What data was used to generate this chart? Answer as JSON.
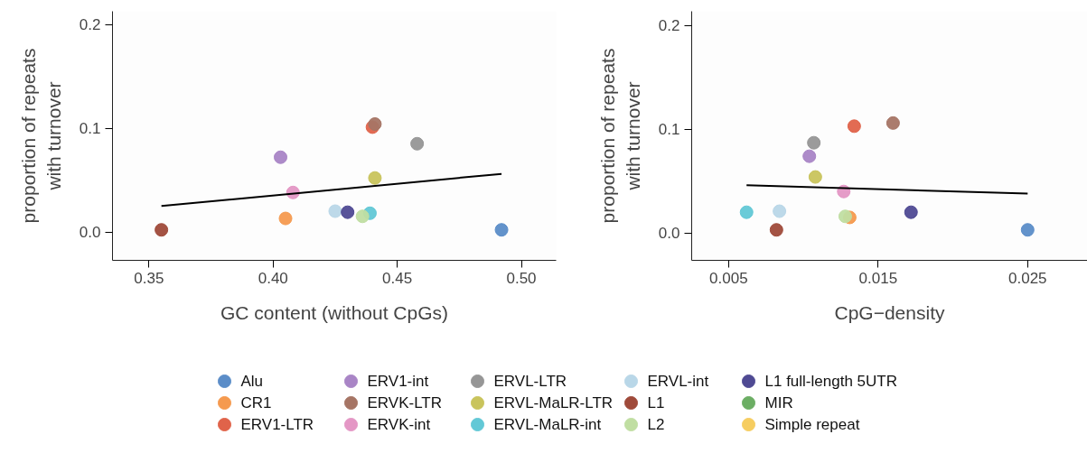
{
  "chart_data": [
    {
      "type": "scatter",
      "xlabel": "GC content (without CpGs)",
      "ylabel": "proportion of repeats\nwith turnover",
      "xlim": [
        0.3353,
        0.514
      ],
      "ylim": [
        -0.0274,
        0.2127
      ],
      "xticks": [
        {
          "value": 0.35,
          "label": "0.35"
        },
        {
          "value": 0.4,
          "label": "0.40"
        },
        {
          "value": 0.45,
          "label": "0.45"
        },
        {
          "value": 0.5,
          "label": "0.50"
        }
      ],
      "yticks": [
        {
          "value": 0,
          "label": "0.0"
        },
        {
          "value": 0.1,
          "label": "0.1"
        },
        {
          "value": 0.2,
          "label": "0.2"
        }
      ],
      "grid": false,
      "marker": "circle",
      "legend": "bottom",
      "series": [
        {
          "name": "Alu",
          "color": "#5b8dc8",
          "x": [
            0.492
          ],
          "values": [
            0.002
          ]
        },
        {
          "name": "CR1",
          "color": "#f59a4f",
          "x": [
            0.405
          ],
          "values": [
            0.013
          ]
        },
        {
          "name": "ERV1-LTR",
          "color": "#e0634a",
          "x": [
            0.44
          ],
          "values": [
            0.101
          ]
        },
        {
          "name": "ERV1-int",
          "color": "#a985c6",
          "x": [
            0.403
          ],
          "values": [
            0.072
          ]
        },
        {
          "name": "ERVK-LTR",
          "color": "#a67565",
          "x": [
            0.441
          ],
          "values": [
            0.104
          ]
        },
        {
          "name": "ERVK-int",
          "color": "#e497c5",
          "x": [
            0.408
          ],
          "values": [
            0.038
          ]
        },
        {
          "name": "ERVL-LTR",
          "color": "#969696",
          "x": [
            0.458
          ],
          "values": [
            0.085
          ]
        },
        {
          "name": "ERVL-MaLR-LTR",
          "color": "#c9c45c",
          "x": [
            0.441
          ],
          "values": [
            0.052
          ]
        },
        {
          "name": "ERVL-MaLR-int",
          "color": "#62c8d6",
          "x": [
            0.439
          ],
          "values": [
            0.018
          ]
        },
        {
          "name": "ERVL-int",
          "color": "#b9d7e8",
          "x": [
            0.425
          ],
          "values": [
            0.02
          ]
        },
        {
          "name": "L1",
          "color": "#9f4a3a",
          "x": [
            0.355
          ],
          "values": [
            0.002
          ]
        },
        {
          "name": "L2",
          "color": "#c0dea2",
          "x": [
            0.436
          ],
          "values": [
            0.015
          ]
        },
        {
          "name": "L1 full-length 5UTR",
          "color": "#4f4a93",
          "x": [
            0.43
          ],
          "values": [
            0.019
          ]
        },
        {
          "name": "MIR",
          "color": "#6cae64",
          "x": [
            null
          ],
          "values": [
            null
          ]
        },
        {
          "name": "Simple repeat",
          "color": "#f6cd60",
          "x": [
            null
          ],
          "values": [
            null
          ]
        },
        {
          "type": "line",
          "marker": "none",
          "color": "#000000",
          "x": [
            0.355,
            0.492
          ],
          "values": [
            0.025,
            0.056
          ]
        }
      ]
    },
    {
      "type": "scatter",
      "xlabel": "CpG−density",
      "ylabel": "proportion of repeats\nwith turnover",
      "xlim": [
        0.00253,
        0.029
      ],
      "ylim": [
        -0.0264,
        0.2138
      ],
      "xticks": [
        {
          "value": 0.005,
          "label": "0.005"
        },
        {
          "value": 0.015,
          "label": "0.015"
        },
        {
          "value": 0.025,
          "label": "0.025"
        }
      ],
      "yticks": [
        {
          "value": 0,
          "label": "0.0"
        },
        {
          "value": 0.1,
          "label": "0.1"
        },
        {
          "value": 0.2,
          "label": "0.2"
        }
      ],
      "grid": false,
      "marker": "circle",
      "series": [
        {
          "color": "#5b8dc8",
          "x": [
            0.025
          ],
          "values": [
            0.003
          ]
        },
        {
          "color": "#f59a4f",
          "x": [
            0.0131
          ],
          "values": [
            0.015
          ]
        },
        {
          "color": "#e0634a",
          "x": [
            0.0134
          ],
          "values": [
            0.103
          ]
        },
        {
          "color": "#a985c6",
          "x": [
            0.0104
          ],
          "values": [
            0.074
          ]
        },
        {
          "color": "#a67565",
          "x": [
            0.016
          ],
          "values": [
            0.106
          ]
        },
        {
          "color": "#e497c5",
          "x": [
            0.0127
          ],
          "values": [
            0.04
          ]
        },
        {
          "color": "#969696",
          "x": [
            0.0107
          ],
          "values": [
            0.087
          ]
        },
        {
          "color": "#c9c45c",
          "x": [
            0.0108
          ],
          "values": [
            0.054
          ]
        },
        {
          "color": "#62c8d6",
          "x": [
            0.0062
          ],
          "values": [
            0.02
          ]
        },
        {
          "color": "#b9d7e8",
          "x": [
            0.0084
          ],
          "values": [
            0.021
          ]
        },
        {
          "color": "#9f4a3a",
          "x": [
            0.0082
          ],
          "values": [
            0.003
          ]
        },
        {
          "color": "#c0dea2",
          "x": [
            0.0128
          ],
          "values": [
            0.016
          ]
        },
        {
          "color": "#4f4a93",
          "x": [
            0.0172
          ],
          "values": [
            0.02
          ]
        },
        {
          "type": "line",
          "marker": "none",
          "color": "#000000",
          "x": [
            0.0062,
            0.025
          ],
          "values": [
            0.046,
            0.038
          ]
        }
      ]
    }
  ]
}
